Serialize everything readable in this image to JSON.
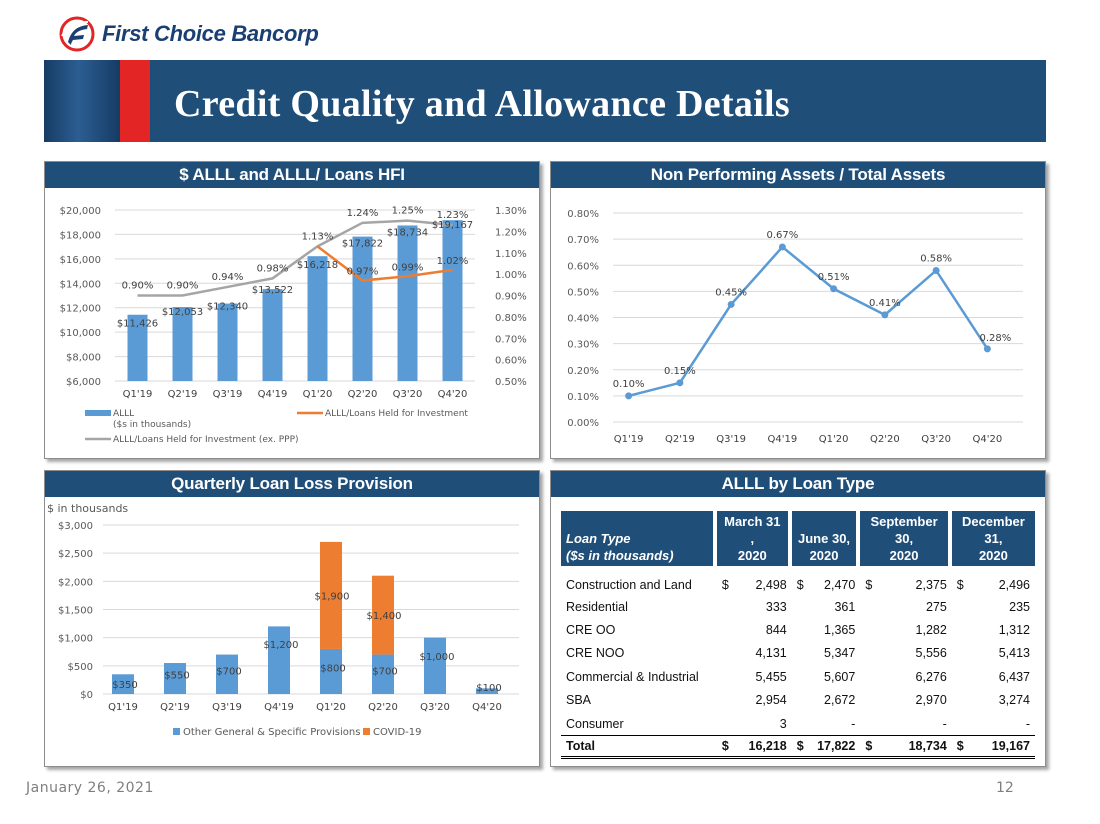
{
  "company": "First Choice Bancorp",
  "title": "Credit Quality and Allowance Details",
  "footer": {
    "date": "January 26, 2021",
    "page": "12"
  },
  "colors": {
    "navy": "#1f4e79",
    "red": "#e32526",
    "bar_blue": "#5b9bd5",
    "orange": "#ed7d31",
    "gray_line": "#a5a5a5"
  },
  "panels": {
    "alll": {
      "title": "$ ALLL and ALLL/ Loans HFI"
    },
    "npa": {
      "title": "Non Performing Assets / Total Assets"
    },
    "provision": {
      "title": "Quarterly Loan Loss Provision",
      "unit_note": "$ in thousands"
    },
    "allltype": {
      "title": "ALLL by Loan Type"
    }
  },
  "chart_data": [
    {
      "id": "alll",
      "type": "bar",
      "categories": [
        "Q1'19",
        "Q2'19",
        "Q3'19",
        "Q4'19",
        "Q1'20",
        "Q2'20",
        "Q3'20",
        "Q4'20"
      ],
      "series": [
        {
          "name": "ALLL",
          "name_line2": "($s in thousands)",
          "type": "bar",
          "axis": "left",
          "values": [
            11426,
            12053,
            12340,
            13522,
            16218,
            17822,
            18734,
            19167
          ],
          "labels": [
            "$11,426",
            "$12,053",
            "$12,340",
            "$13,522",
            "$16,218",
            "$17,822",
            "$18,734",
            "$19,167"
          ]
        },
        {
          "name": "ALLL/Loans Held for Investment",
          "type": "line",
          "axis": "right",
          "values": [
            null,
            null,
            null,
            null,
            1.13,
            0.97,
            0.99,
            1.02
          ],
          "labels": [
            "",
            "",
            "",
            "",
            "",
            "0.97%",
            "0.99%",
            "1.02%"
          ]
        },
        {
          "name": "ALLL/Loans Held for Investment (ex. PPP)",
          "type": "line",
          "axis": "right",
          "values": [
            0.9,
            0.9,
            0.94,
            0.98,
            1.13,
            1.24,
            1.25,
            1.23
          ],
          "labels": [
            "0.90%",
            "0.90%",
            "0.94%",
            "0.98%",
            "1.13%",
            "1.24%",
            "1.25%",
            "1.23%"
          ]
        }
      ],
      "yticks_left": [
        "$6,000",
        "$8,000",
        "$10,000",
        "$12,000",
        "$14,000",
        "$16,000",
        "$18,000",
        "$20,000"
      ],
      "ylim_left": [
        6000,
        20000
      ],
      "yticks_right": [
        "0.50%",
        "0.60%",
        "0.70%",
        "0.80%",
        "0.90%",
        "1.00%",
        "1.10%",
        "1.20%",
        "1.30%"
      ],
      "ylim_right": [
        0.5,
        1.3
      ],
      "grid": true,
      "legend_position": "bottom"
    },
    {
      "id": "npa",
      "type": "line",
      "categories": [
        "Q1'19",
        "Q2'19",
        "Q3'19",
        "Q4'19",
        "Q1'20",
        "Q2'20",
        "Q3'20",
        "Q4'20"
      ],
      "series": [
        {
          "name": "NPA / Total Assets",
          "values": [
            0.1,
            0.15,
            0.45,
            0.67,
            0.51,
            0.41,
            0.58,
            0.28
          ],
          "labels": [
            "0.10%",
            "0.15%",
            "0.45%",
            "0.67%",
            "0.51%",
            "0.41%",
            "0.58%",
            "0.28%"
          ]
        }
      ],
      "yticks": [
        "0.00%",
        "0.10%",
        "0.20%",
        "0.30%",
        "0.40%",
        "0.50%",
        "0.60%",
        "0.70%",
        "0.80%"
      ],
      "ylim": [
        0,
        0.8
      ],
      "grid": true
    },
    {
      "id": "provision",
      "type": "bar",
      "stacked": true,
      "categories": [
        "Q1'19",
        "Q2'19",
        "Q3'19",
        "Q4'19",
        "Q1'20",
        "Q2'20",
        "Q3'20",
        "Q4'20"
      ],
      "series": [
        {
          "name": "Other General & Specific Provisions",
          "values": [
            350,
            550,
            700,
            1200,
            800,
            700,
            1000,
            100
          ],
          "labels": [
            "$350",
            "$550",
            "$700",
            "$1,200",
            "$800",
            "$700",
            "$1,000",
            "$100"
          ]
        },
        {
          "name": "COVID-19",
          "values": [
            0,
            0,
            0,
            0,
            1900,
            1400,
            0,
            0
          ],
          "labels": [
            "",
            "",
            "",
            "",
            "$1,900",
            "$1,400",
            "",
            ""
          ]
        }
      ],
      "yticks": [
        "$0",
        "$500",
        "$1,000",
        "$1,500",
        "$2,000",
        "$2,500",
        "$3,000"
      ],
      "ylim": [
        0,
        3000
      ],
      "grid": true,
      "legend_position": "bottom"
    }
  ],
  "table": {
    "headers": [
      {
        "l1": "Loan Type",
        "l2": "($s in thousands)"
      },
      {
        "l1": "March 31 ,",
        "l2": "2020"
      },
      {
        "l1": "June 30,",
        "l2": "2020"
      },
      {
        "l1": "September 30,",
        "l2": "2020"
      },
      {
        "l1": "December 31,",
        "l2": "2020"
      }
    ],
    "rows": [
      {
        "label": "Construction and Land",
        "values": [
          "2,498",
          "2,470",
          "2,375",
          "2,496"
        ],
        "currency": true
      },
      {
        "label": "Residential",
        "values": [
          "333",
          "361",
          "275",
          "235"
        ]
      },
      {
        "label": "CRE OO",
        "values": [
          "844",
          "1,365",
          "1,282",
          "1,312"
        ]
      },
      {
        "label": "CRE NOO",
        "values": [
          "4,131",
          "5,347",
          "5,556",
          "5,413"
        ]
      },
      {
        "label": "Commercial & Industrial",
        "values": [
          "5,455",
          "5,607",
          "6,276",
          "6,437"
        ]
      },
      {
        "label": "SBA",
        "values": [
          "2,954",
          "2,672",
          "2,970",
          "3,274"
        ]
      },
      {
        "label": "Consumer",
        "values": [
          "3",
          "-",
          "-",
          "-"
        ]
      }
    ],
    "total": {
      "label": "Total",
      "values": [
        "16,218",
        "17,822",
        "18,734",
        "19,167"
      ]
    },
    "currency_symbol": "$"
  }
}
